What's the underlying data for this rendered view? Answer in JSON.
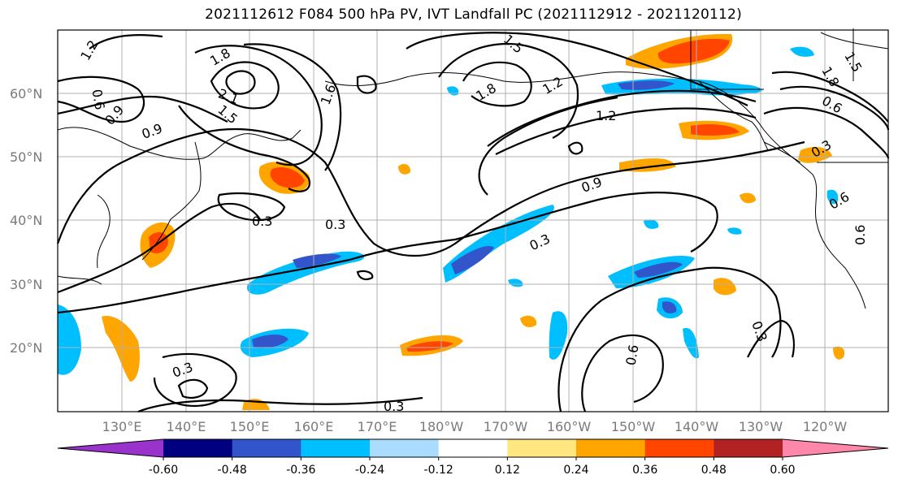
{
  "title": "2021112612 F084 500 hPa PV, IVT Landfall PC (2021112912 - 2021120112)",
  "map": {
    "lat_labels": [
      {
        "text": "60°N",
        "lat": 60
      },
      {
        "text": "50°N",
        "lat": 50
      },
      {
        "text": "40°N",
        "lat": 40
      },
      {
        "text": "30°N",
        "lat": 30
      },
      {
        "text": "20°N",
        "lat": 20
      }
    ],
    "lon_labels": [
      {
        "text": "130°E",
        "lon": 130
      },
      {
        "text": "140°E",
        "lon": 140
      },
      {
        "text": "150°E",
        "lon": 150
      },
      {
        "text": "160°E",
        "lon": 160
      },
      {
        "text": "170°E",
        "lon": 170
      },
      {
        "text": "180°W",
        "lon": 180
      },
      {
        "text": "170°W",
        "lon": 190
      },
      {
        "text": "160°W",
        "lon": 200
      },
      {
        "text": "150°W",
        "lon": 210
      },
      {
        "text": "140°W",
        "lon": 220
      },
      {
        "text": "130°W",
        "lon": 230
      },
      {
        "text": "120°W",
        "lon": 240
      }
    ],
    "contour_labels": [
      "1.2",
      "1.8",
      "2.1",
      "1.5",
      "0.6",
      "0.9",
      "0.9",
      "0.3",
      "0.3",
      "1.5",
      "1.8",
      "1.2",
      "1.2",
      "0.9",
      "0.3",
      "0.6",
      "0.3",
      "0.3",
      "0.3",
      "1.5",
      "1.8",
      "1.6",
      "0.6",
      "0.6",
      "0.3",
      "0.6"
    ],
    "grid": true
  },
  "colorbar": {
    "ticks": [
      "-0.60",
      "-0.48",
      "-0.36",
      "-0.24",
      "-0.12",
      "0.12",
      "0.24",
      "0.36",
      "0.48",
      "0.60"
    ],
    "colors": [
      "#9933cc",
      "#000080",
      "#3355cc",
      "#00bfff",
      "#aadcff",
      "#ffffff",
      "#ffe680",
      "#ffa500",
      "#ff4500",
      "#b22222",
      "#ff88aa"
    ]
  }
}
